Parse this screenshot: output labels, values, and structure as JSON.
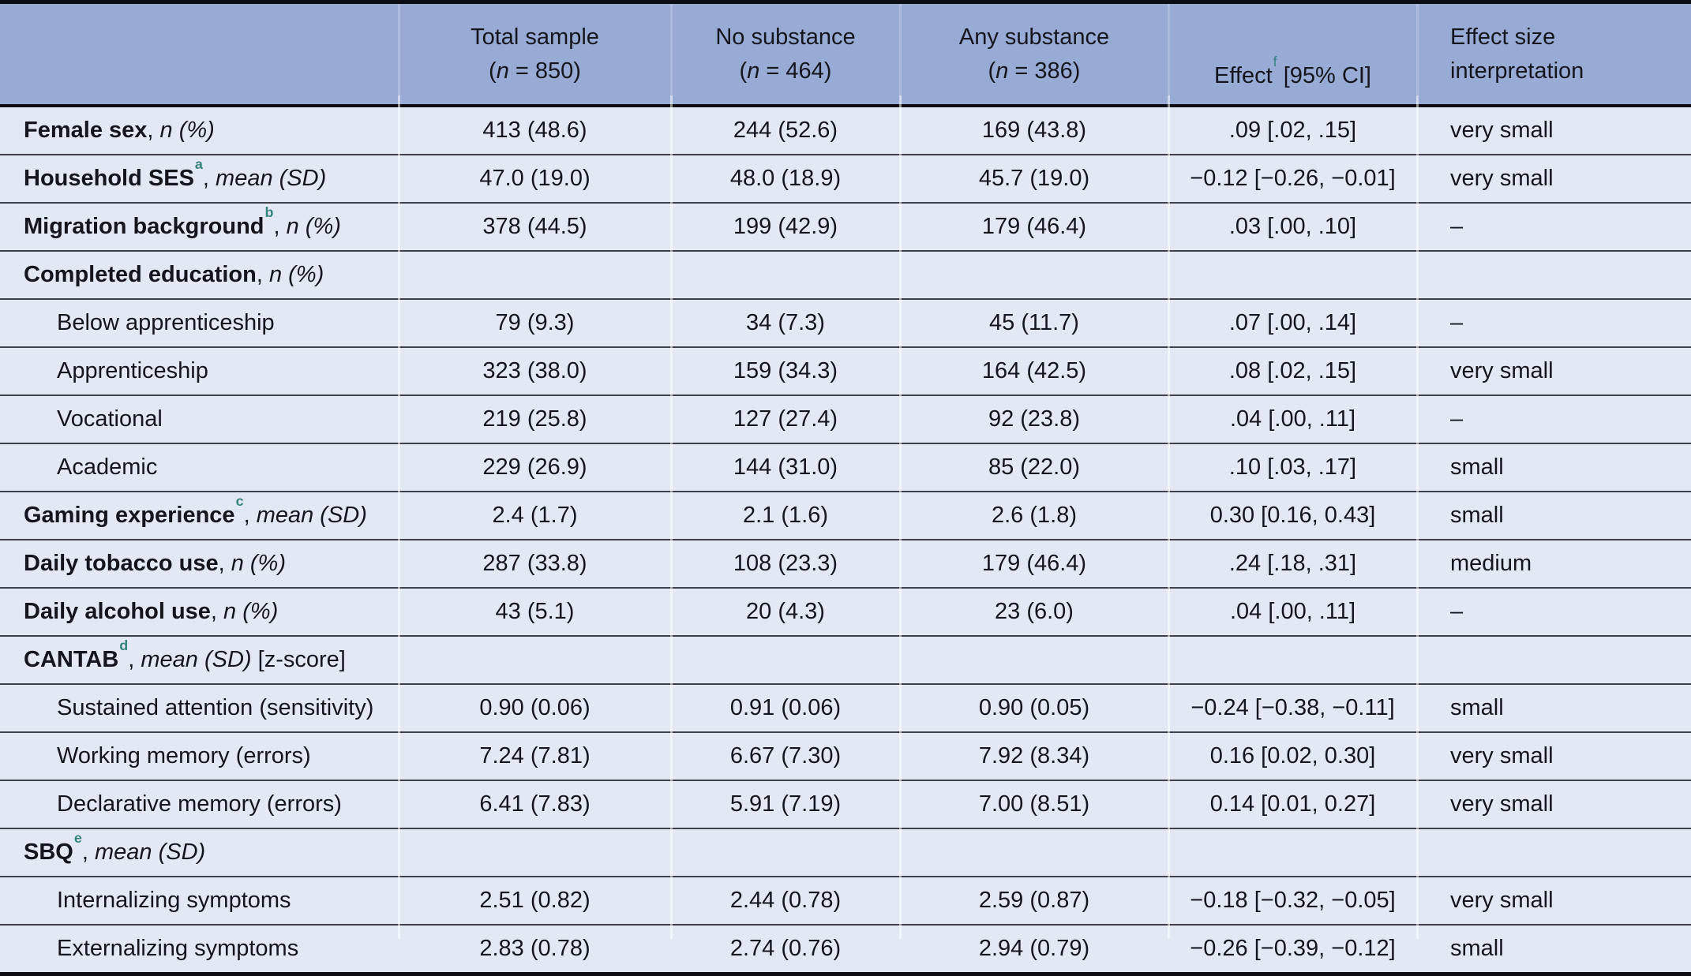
{
  "colors": {
    "header_background": "#98abd5",
    "body_background": "#e3e9f4",
    "footnote_marker": "#35837f",
    "heavy_rule": "#0e0e12",
    "row_rule": "#40404a"
  },
  "table": {
    "header": {
      "col_total": {
        "title": "Total sample",
        "n_open": "(",
        "n_symbol": "n",
        "n_rest": " = 850)"
      },
      "col_no_substance": {
        "title": "No substance",
        "n_open": "(",
        "n_symbol": "n",
        "n_rest": " = 464)"
      },
      "col_any_substance": {
        "title": "Any substance",
        "n_open": "(",
        "n_symbol": "n",
        "n_rest": " = 386)"
      },
      "col_effect": {
        "title": "Effect",
        "sup": "f",
        "rest": " [95% CI]"
      },
      "col_interpretation": {
        "line1": "Effect size",
        "line2": "interpretation"
      }
    },
    "rows": [
      {
        "label": "Female sex",
        "sup": "",
        "unit_italic": "n (%)",
        "unit_plain": "",
        "bold": true,
        "indent": false,
        "cells": {
          "total": "413 (48.6)",
          "no_substance": "244 (52.6)",
          "any_substance": "169 (43.8)",
          "effect": ".09 [.02, .15]",
          "interpretation": "very small"
        }
      },
      {
        "label": "Household SES",
        "sup": "a",
        "unit_italic": "mean (SD)",
        "unit_plain": "",
        "bold": true,
        "indent": false,
        "cells": {
          "total": "47.0 (19.0)",
          "no_substance": "48.0 (18.9)",
          "any_substance": "45.7 (19.0)",
          "effect": "−0.12 [−0.26, −0.01]",
          "interpretation": "very small"
        }
      },
      {
        "label": "Migration background",
        "sup": "b",
        "unit_italic": "n (%)",
        "unit_plain": "",
        "bold": true,
        "indent": false,
        "cells": {
          "total": "378 (44.5)",
          "no_substance": "199 (42.9)",
          "any_substance": "179 (46.4)",
          "effect": ".03 [.00, .10]",
          "interpretation": "–"
        }
      },
      {
        "label": "Completed education",
        "sup": "",
        "unit_italic": "n (%)",
        "unit_plain": "",
        "bold": true,
        "indent": false,
        "cells": {
          "total": "",
          "no_substance": "",
          "any_substance": "",
          "effect": "",
          "interpretation": ""
        }
      },
      {
        "label": "Below apprenticeship",
        "sup": "",
        "unit_italic": "",
        "unit_plain": "",
        "bold": false,
        "indent": true,
        "cells": {
          "total": "79 (9.3)",
          "no_substance": "34 (7.3)",
          "any_substance": "45 (11.7)",
          "effect": ".07 [.00, .14]",
          "interpretation": "–"
        }
      },
      {
        "label": "Apprenticeship",
        "sup": "",
        "unit_italic": "",
        "unit_plain": "",
        "bold": false,
        "indent": true,
        "cells": {
          "total": "323 (38.0)",
          "no_substance": "159 (34.3)",
          "any_substance": "164 (42.5)",
          "effect": ".08 [.02, .15]",
          "interpretation": "very small"
        }
      },
      {
        "label": "Vocational",
        "sup": "",
        "unit_italic": "",
        "unit_plain": "",
        "bold": false,
        "indent": true,
        "cells": {
          "total": "219 (25.8)",
          "no_substance": "127 (27.4)",
          "any_substance": "92 (23.8)",
          "effect": ".04 [.00, .11]",
          "interpretation": "–"
        }
      },
      {
        "label": "Academic",
        "sup": "",
        "unit_italic": "",
        "unit_plain": "",
        "bold": false,
        "indent": true,
        "cells": {
          "total": "229 (26.9)",
          "no_substance": "144 (31.0)",
          "any_substance": "85 (22.0)",
          "effect": ".10 [.03, .17]",
          "interpretation": "small"
        }
      },
      {
        "label": "Gaming experience",
        "sup": "c",
        "unit_italic": "mean (SD)",
        "unit_plain": "",
        "bold": true,
        "indent": false,
        "cells": {
          "total": "2.4 (1.7)",
          "no_substance": "2.1 (1.6)",
          "any_substance": "2.6 (1.8)",
          "effect": "0.30 [0.16, 0.43]",
          "interpretation": "small"
        }
      },
      {
        "label": "Daily tobacco use",
        "sup": "",
        "unit_italic": "n (%)",
        "unit_plain": "",
        "bold": true,
        "indent": false,
        "cells": {
          "total": "287 (33.8)",
          "no_substance": "108 (23.3)",
          "any_substance": "179 (46.4)",
          "effect": ".24 [.18, .31]",
          "interpretation": "medium"
        }
      },
      {
        "label": "Daily alcohol use",
        "sup": "",
        "unit_italic": "n (%)",
        "unit_plain": "",
        "bold": true,
        "indent": false,
        "cells": {
          "total": "43 (5.1)",
          "no_substance": "20 (4.3)",
          "any_substance": "23 (6.0)",
          "effect": ".04 [.00, .11]",
          "interpretation": "–"
        }
      },
      {
        "label": "CANTAB",
        "sup": "d",
        "unit_italic": "mean (SD)",
        "unit_plain": " [z-score]",
        "bold": true,
        "indent": false,
        "cells": {
          "total": "",
          "no_substance": "",
          "any_substance": "",
          "effect": "",
          "interpretation": ""
        }
      },
      {
        "label": "Sustained attention (sensitivity)",
        "sup": "",
        "unit_italic": "",
        "unit_plain": "",
        "bold": false,
        "indent": true,
        "cells": {
          "total": "0.90 (0.06)",
          "no_substance": "0.91 (0.06)",
          "any_substance": "0.90 (0.05)",
          "effect": "−0.24 [−0.38, −0.11]",
          "interpretation": "small"
        }
      },
      {
        "label": "Working memory (errors)",
        "sup": "",
        "unit_italic": "",
        "unit_plain": "",
        "bold": false,
        "indent": true,
        "cells": {
          "total": "7.24 (7.81)",
          "no_substance": "6.67 (7.30)",
          "any_substance": "7.92 (8.34)",
          "effect": "0.16 [0.02, 0.30]",
          "interpretation": "very small"
        }
      },
      {
        "label": "Declarative memory (errors)",
        "sup": "",
        "unit_italic": "",
        "unit_plain": "",
        "bold": false,
        "indent": true,
        "cells": {
          "total": "6.41 (7.83)",
          "no_substance": "5.91 (7.19)",
          "any_substance": "7.00 (8.51)",
          "effect": "0.14 [0.01, 0.27]",
          "interpretation": "very small"
        }
      },
      {
        "label": "SBQ",
        "sup": "e",
        "unit_italic": "mean (SD)",
        "unit_plain": "",
        "bold": true,
        "indent": false,
        "cells": {
          "total": "",
          "no_substance": "",
          "any_substance": "",
          "effect": "",
          "interpretation": ""
        }
      },
      {
        "label": "Internalizing symptoms",
        "sup": "",
        "unit_italic": "",
        "unit_plain": "",
        "bold": false,
        "indent": true,
        "cells": {
          "total": "2.51 (0.82)",
          "no_substance": "2.44 (0.78)",
          "any_substance": "2.59 (0.87)",
          "effect": "−0.18 [−0.32, −0.05]",
          "interpretation": "very small"
        }
      },
      {
        "label": "Externalizing symptoms",
        "sup": "",
        "unit_italic": "",
        "unit_plain": "",
        "bold": false,
        "indent": true,
        "cells": {
          "total": "2.83 (0.78)",
          "no_substance": "2.74 (0.76)",
          "any_substance": "2.94 (0.79)",
          "effect": "−0.26 [−0.39, −0.12]",
          "interpretation": "small"
        }
      }
    ]
  }
}
